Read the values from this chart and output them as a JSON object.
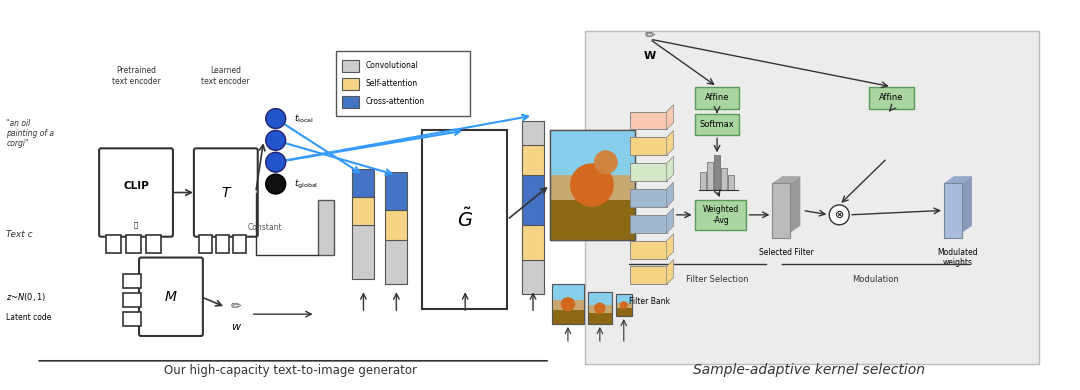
{
  "bg_color": "#ffffff",
  "left_panel_bg": "#ffffff",
  "right_panel_bg": "#f0f0f0",
  "legend_border": "#333333",
  "conv_color": "#cccccc",
  "self_attn_color": "#f5d485",
  "cross_attn_color": "#4472c4",
  "blue_dot_color": "#2255cc",
  "black_dot_color": "#111111",
  "arrow_color": "#333333",
  "blue_arrow_color": "#3399ff",
  "green_box_color": "#aad4a0",
  "title_left": "Our high-capacity text-to-image generator",
  "title_right": "Sample-adaptive kernel selection",
  "label_pretrained": "Pretrained\ntext encoder",
  "label_learned": "Learned\ntext encoder",
  "label_text_c": "Text c",
  "label_quote": "\"an oil\npainting of a\ncorgi\"",
  "label_latent": "z~N(0,1)\nLatent code",
  "label_constant": "Constant",
  "label_t_local": "t",
  "label_t_global": "t",
  "label_w": "w",
  "label_filter_bank": "Filter Bank",
  "label_selected_filter": "Selected Filter",
  "label_modulated": "Modulated\nweights",
  "label_filter_selection": "Filter Selection",
  "label_modulation": "Modulation",
  "label_W": "W",
  "label_affine1": "Affine",
  "label_softmax": "Softmax",
  "label_affine2": "Affine",
  "label_weighted_avg": "Weighted\n-Avg",
  "legend_items": [
    "Convolutional",
    "Self-attention",
    "Cross-attention"
  ],
  "legend_colors": [
    "#cccccc",
    "#f5d485",
    "#4472c4"
  ]
}
